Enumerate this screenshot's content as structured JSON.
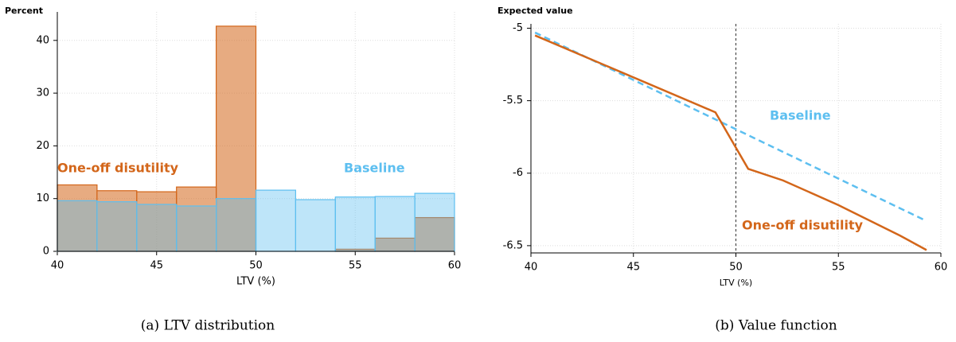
{
  "chart_data": [
    {
      "type": "histogram",
      "caption": "(a) LTV distribution",
      "y_label": "Percent",
      "x_label": "LTV (%)",
      "bins": [
        40,
        42,
        44,
        46,
        48,
        50,
        52,
        54,
        56,
        58,
        60
      ],
      "series": [
        {
          "name": "One-off disutility",
          "color": "#d3661a",
          "values": [
            12.6,
            11.5,
            11.3,
            12.2,
            42.7,
            0,
            0,
            0.4,
            2.5,
            6.4
          ]
        },
        {
          "name": "Baseline",
          "color": "#5dbff0",
          "values": [
            9.6,
            9.4,
            8.9,
            8.6,
            10.0,
            11.6,
            9.8,
            10.3,
            10.4,
            11.0
          ]
        }
      ],
      "xlim": [
        40,
        60
      ],
      "xticks": [
        40,
        45,
        50,
        55,
        60
      ],
      "ylim": [
        0,
        45.4
      ],
      "yticks": [
        0,
        10,
        20,
        30,
        40
      ],
      "grid": true
    },
    {
      "type": "line",
      "caption": "(b) Value function",
      "y_label": "Expected value",
      "x_label": "LTV (%)",
      "series": [
        {
          "name": "Baseline",
          "color": "#5dbff0",
          "dashed": true,
          "x": [
            40.2,
            59.3
          ],
          "values": [
            -5.03,
            -6.33
          ]
        },
        {
          "name": "One-off disutility",
          "color": "#d3661a",
          "dashed": false,
          "x": [
            40.2,
            49,
            50.6,
            52.3,
            55,
            58,
            59.3
          ],
          "values": [
            -5.05,
            -5.58,
            -5.97,
            -6.05,
            -6.22,
            -6.43,
            -6.53
          ]
        }
      ],
      "vline": 50,
      "xlim": [
        40,
        60
      ],
      "xticks": [
        40,
        45,
        50,
        55,
        60
      ],
      "ylim": [
        -6.55,
        -4.97
      ],
      "yticks": [
        -5,
        -5.5,
        -6,
        -6.5
      ],
      "grid": true
    }
  ]
}
